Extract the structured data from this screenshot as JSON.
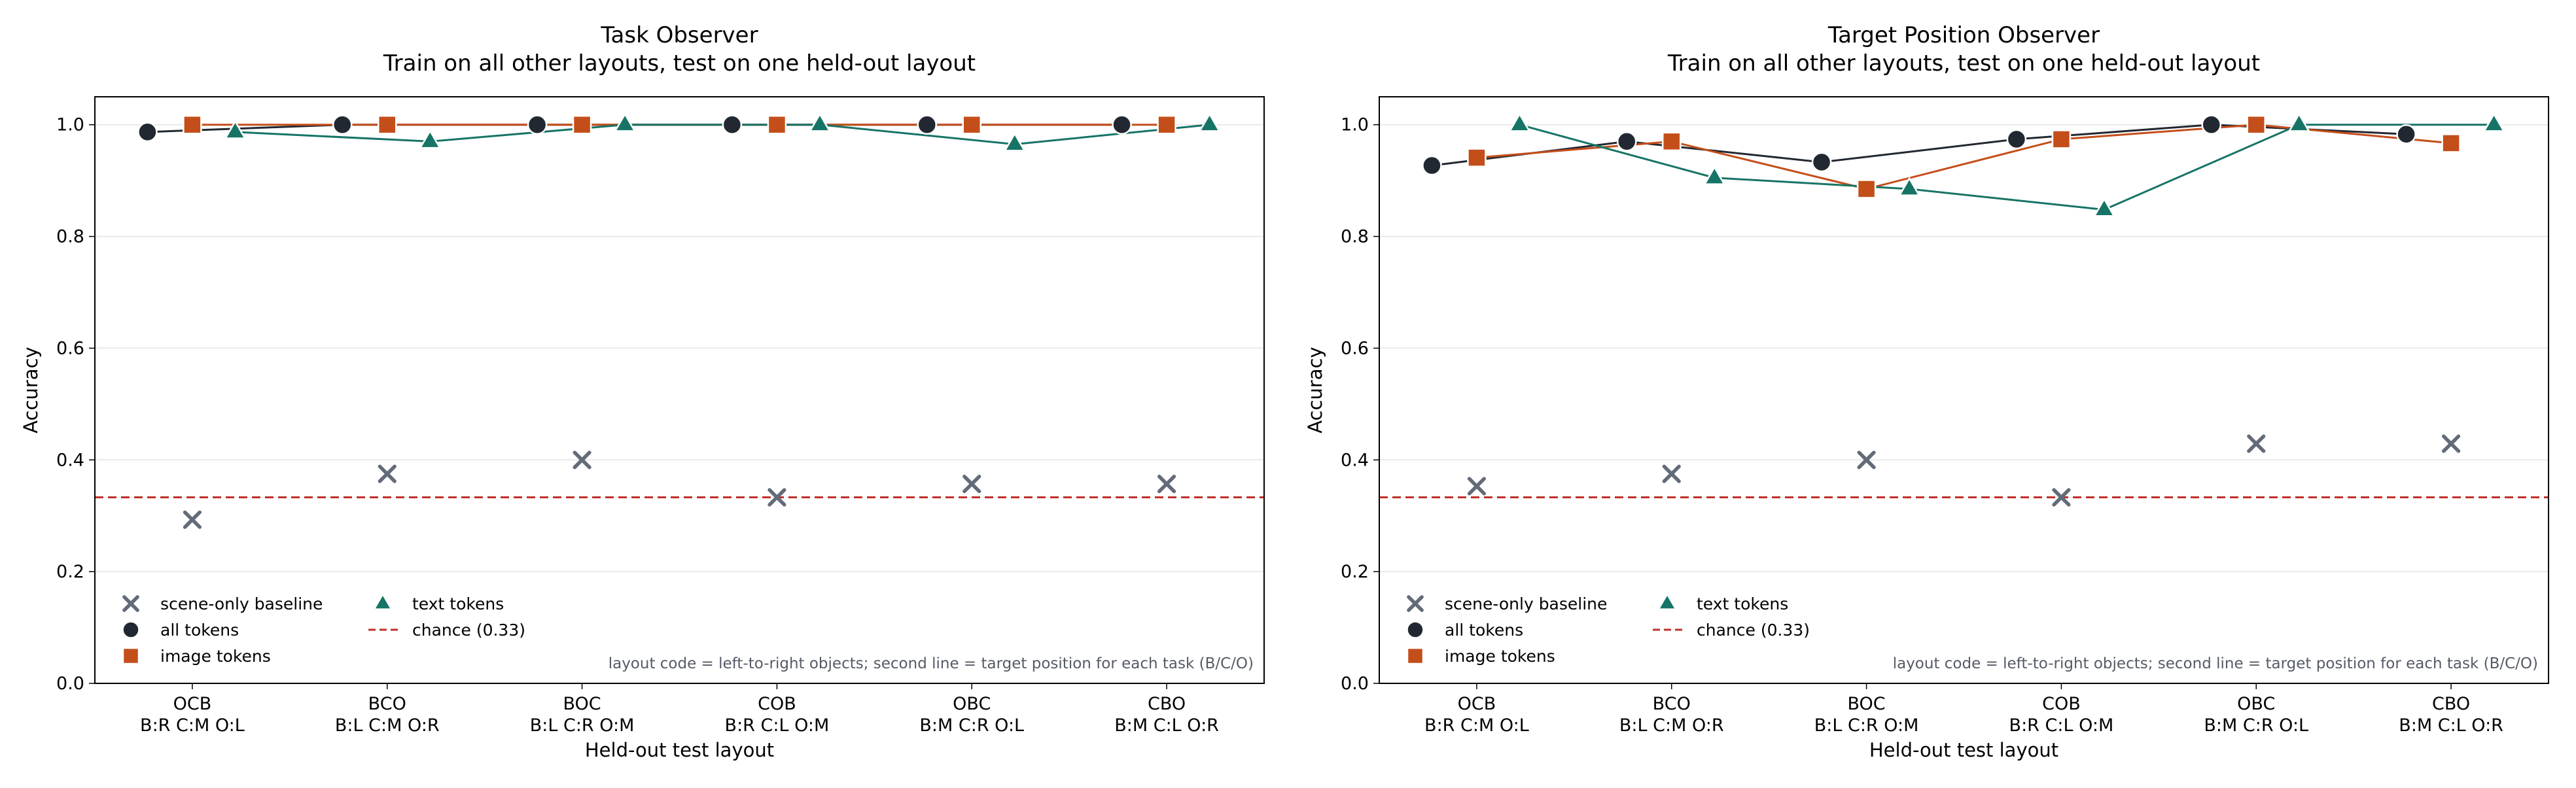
{
  "chart_data": [
    {
      "type": "line",
      "title": "Task Observer",
      "subtitle": "Train on all other layouts, test on one held-out layout",
      "xlabel": "Held-out test layout",
      "ylabel": "Accuracy",
      "ylim": [
        0.0,
        1.05
      ],
      "yticks": [
        "0.0",
        "0.2",
        "0.4",
        "0.6",
        "0.8",
        "1.0"
      ],
      "grid": "horizontal",
      "legend_placement": "lower-left",
      "categories": [
        {
          "code": "OCB",
          "positions": "B:R C:M O:L"
        },
        {
          "code": "BCO",
          "positions": "B:L C:M O:R"
        },
        {
          "code": "BOC",
          "positions": "B:L C:R O:M"
        },
        {
          "code": "COB",
          "positions": "B:R C:L O:M"
        },
        {
          "code": "OBC",
          "positions": "B:M C:R O:L"
        },
        {
          "code": "CBO",
          "positions": "B:M C:L O:R"
        }
      ],
      "series": [
        {
          "name": "scene-only baseline",
          "marker": "x",
          "color": "#636b78",
          "connected": false,
          "values": [
            0.293,
            0.375,
            0.4,
            0.333,
            0.357,
            0.357
          ]
        },
        {
          "name": "all tokens",
          "marker": "circle",
          "color": "#222831",
          "connected": true,
          "values": [
            0.987,
            1.0,
            1.0,
            1.0,
            1.0,
            1.0
          ]
        },
        {
          "name": "image tokens",
          "marker": "square",
          "color": "#c44e1a",
          "connected": true,
          "values": [
            1.0,
            1.0,
            1.0,
            1.0,
            1.0,
            1.0
          ]
        },
        {
          "name": "text tokens",
          "marker": "triangle",
          "color": "#167466",
          "connected": true,
          "values": [
            0.987,
            0.97,
            1.0,
            1.0,
            0.965,
            1.0
          ]
        }
      ],
      "reference_line": {
        "name": "chance (0.33)",
        "value": 0.333,
        "color": "#c0302a"
      },
      "annotation": "layout code = left-to-right objects; second line = target position for each task (B/C/O)"
    },
    {
      "type": "line",
      "title": "Target Position Observer",
      "subtitle": "Train on all other layouts, test on one held-out layout",
      "xlabel": "Held-out test layout",
      "ylabel": "Accuracy",
      "ylim": [
        0.0,
        1.05
      ],
      "yticks": [
        "0.0",
        "0.2",
        "0.4",
        "0.6",
        "0.8",
        "1.0"
      ],
      "grid": "horizontal",
      "legend_placement": "lower-left",
      "categories": [
        {
          "code": "OCB",
          "positions": "B:R C:M O:L"
        },
        {
          "code": "BCO",
          "positions": "B:L C:M O:R"
        },
        {
          "code": "BOC",
          "positions": "B:L C:R O:M"
        },
        {
          "code": "COB",
          "positions": "B:R C:L O:M"
        },
        {
          "code": "OBC",
          "positions": "B:M C:R O:L"
        },
        {
          "code": "CBO",
          "positions": "B:M C:L O:R"
        }
      ],
      "series": [
        {
          "name": "scene-only baseline",
          "marker": "x",
          "color": "#636b78",
          "connected": false,
          "values": [
            0.353,
            0.375,
            0.4,
            0.333,
            0.429,
            0.429
          ]
        },
        {
          "name": "all tokens",
          "marker": "circle",
          "color": "#222831",
          "connected": true,
          "values": [
            0.927,
            0.97,
            0.933,
            0.974,
            1.0,
            0.983
          ]
        },
        {
          "name": "image tokens",
          "marker": "square",
          "color": "#c44e1a",
          "connected": true,
          "values": [
            0.941,
            0.97,
            0.885,
            0.974,
            1.0,
            0.967
          ]
        },
        {
          "name": "text tokens",
          "marker": "triangle",
          "color": "#167466",
          "connected": true,
          "values": [
            1.0,
            0.905,
            0.885,
            0.848,
            1.0,
            1.0
          ]
        }
      ],
      "reference_line": {
        "name": "chance (0.33)",
        "value": 0.333,
        "color": "#c0302a"
      },
      "annotation": "layout code = left-to-right objects; second line = target position for each task (B/C/O)"
    }
  ]
}
